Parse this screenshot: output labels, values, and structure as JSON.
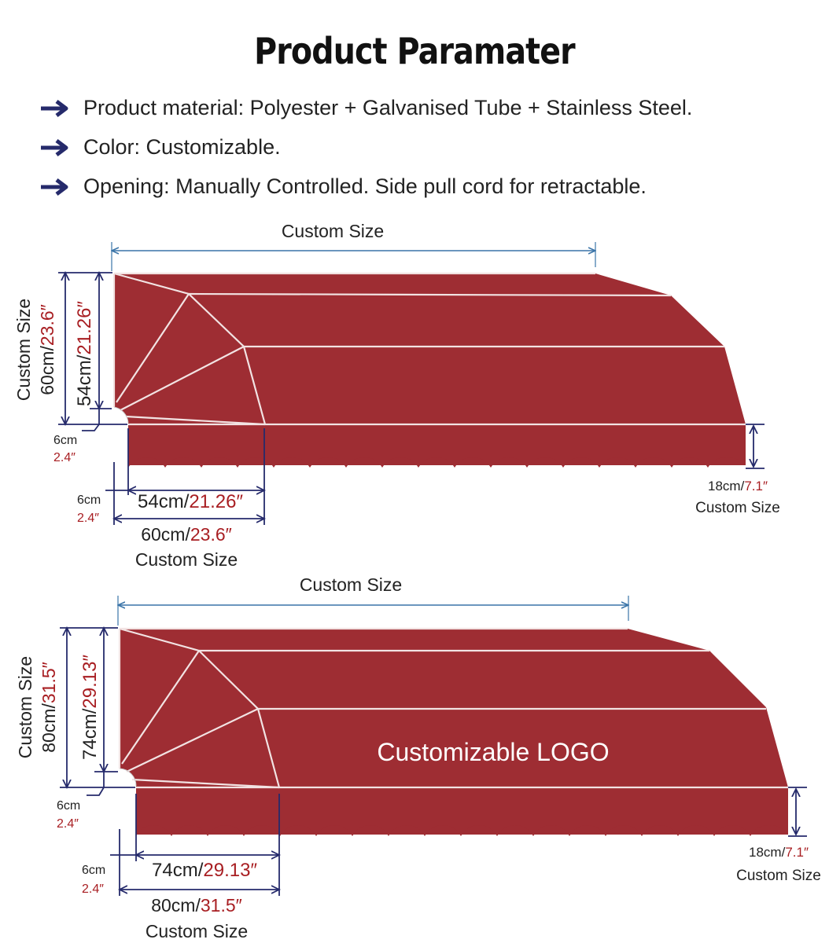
{
  "title": "Product Paramater",
  "features": [
    "Product material: Polyester  + Galvanised Tube + Stainless Steel.",
    "Color: Customizable.",
    "Opening: Manually Controlled. Side pull cord for retractable."
  ],
  "colors": {
    "awning": "#9e2d33",
    "dimension_line_blue": "#3a74a8",
    "dimension_line_navy": "#252a6b",
    "accent_red_text": "#a81e22"
  },
  "icons": {
    "bullet": "arrow-right-icon"
  },
  "diagram1": {
    "width_label": "Custom Size",
    "height_outer": {
      "label": "Custom Size",
      "cm": "60cm/",
      "inch": "23.6″"
    },
    "height_inner": {
      "cm": "54cm/",
      "inch": "21.26″"
    },
    "offset_left": {
      "cm": "6cm",
      "inch": "2.4″"
    },
    "offset_bottom": {
      "cm": "6cm",
      "inch": "2.4″"
    },
    "depth_inner": {
      "cm": "54cm/",
      "inch": "21.26″"
    },
    "depth_outer": {
      "cm": "60cm/",
      "inch": "23.6″",
      "label": "Custom Size"
    },
    "valance": {
      "cm": "18cm/",
      "inch": "7.1″",
      "label": "Custom Size"
    }
  },
  "diagram2": {
    "width_label": "Custom Size",
    "logo_text": "Customizable LOGO",
    "height_outer": {
      "label": "Custom Size",
      "cm": "80cm/",
      "inch": "31.5″"
    },
    "height_inner": {
      "cm": "74cm/",
      "inch": "29.13″"
    },
    "offset_left": {
      "cm": "6cm",
      "inch": "2.4″"
    },
    "offset_bottom": {
      "cm": "6cm",
      "inch": "2.4″"
    },
    "depth_inner": {
      "cm": "74cm/",
      "inch": "29.13″"
    },
    "depth_outer": {
      "cm": "80cm/",
      "inch": "31.5″",
      "label": "Custom Size"
    },
    "valance": {
      "cm": "18cm/",
      "inch": "7.1″",
      "label": "Custom Size"
    }
  }
}
